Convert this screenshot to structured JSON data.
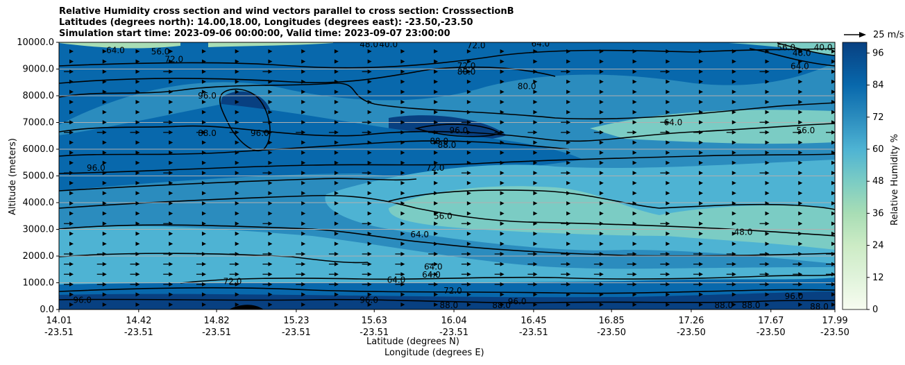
{
  "title_lines": [
    "Relative Humidity cross section and wind vectors parallel to cross section: CrosssectionB",
    "Latitudes (degrees north): 14.00,18.00, Longitudes (degrees east): -23.50,-23.50",
    "Simulation start time: 2023-09-06 00:00:00, Valid time: 2023-09-07 23:00:00"
  ],
  "quiver_key": "25 m/s",
  "chart_data": {
    "type": "contour",
    "xlabel_lat": "Latitude (degrees N)",
    "xlabel_lon": "Longitude (degrees E)",
    "ylabel": "Altitude (meters)",
    "colorbar_label": "Relative Humidity %",
    "ylim": [
      0,
      10000
    ],
    "yticks": [
      "0.0",
      "1000.0",
      "2000.0",
      "3000.0",
      "4000.0",
      "5000.0",
      "6000.0",
      "7000.0",
      "8000.0",
      "9000.0",
      "10000.0"
    ],
    "yticks_values": [
      0,
      1000,
      2000,
      3000,
      4000,
      5000,
      6000,
      7000,
      8000,
      9000,
      10000
    ],
    "xticks": [
      {
        "lat": "14.01",
        "lon": "-23.51",
        "frac": 0.0
      },
      {
        "lat": "14.42",
        "lon": "-23.51",
        "frac": 0.1027
      },
      {
        "lat": "14.82",
        "lon": "-23.51",
        "frac": 0.2031
      },
      {
        "lat": "15.23",
        "lon": "-23.51",
        "frac": 0.3058
      },
      {
        "lat": "15.63",
        "lon": "-23.51",
        "frac": 0.4063
      },
      {
        "lat": "16.04",
        "lon": "-23.51",
        "frac": 0.509
      },
      {
        "lat": "16.45",
        "lon": "-23.51",
        "frac": 0.6117
      },
      {
        "lat": "16.85",
        "lon": "-23.50",
        "frac": 0.7121
      },
      {
        "lat": "17.26",
        "lon": "-23.50",
        "frac": 0.8148
      },
      {
        "lat": "17.67",
        "lon": "-23.50",
        "frac": 0.9175
      },
      {
        "lat": "17.99",
        "lon": "-23.50",
        "frac": 1.0
      }
    ],
    "colorbar_ticks": [
      "0",
      "12",
      "24",
      "36",
      "48",
      "60",
      "72",
      "84",
      "96"
    ],
    "colorbar_tick_values": [
      0,
      12,
      24,
      36,
      48,
      60,
      72,
      84,
      96
    ],
    "colorbar_range": [
      0,
      100
    ],
    "grid_y": true,
    "contour_labels": [
      {
        "text": "64.0",
        "x": 14.3,
        "y": 9700
      },
      {
        "text": "56.0",
        "x": 14.53,
        "y": 9650
      },
      {
        "text": "72.0",
        "x": 14.6,
        "y": 9370
      },
      {
        "text": "96.0",
        "x": 14.77,
        "y": 8000
      },
      {
        "text": "88.0",
        "x": 14.77,
        "y": 6600
      },
      {
        "text": "96.0",
        "x": 15.04,
        "y": 6600
      },
      {
        "text": "96.0",
        "x": 14.2,
        "y": 5300
      },
      {
        "text": "72.0",
        "x": 16.15,
        "y": 9880
      },
      {
        "text": "72.0",
        "x": 16.1,
        "y": 9120
      },
      {
        "text": "80.0",
        "x": 16.1,
        "y": 8900
      },
      {
        "text": "80.0",
        "x": 16.41,
        "y": 8350
      },
      {
        "text": "88.0",
        "x": 15.96,
        "y": 6300
      },
      {
        "text": "88.0",
        "x": 16.0,
        "y": 6150
      },
      {
        "text": "96.0",
        "x": 16.06,
        "y": 6700
      },
      {
        "text": "72.0",
        "x": 15.94,
        "y": 5300
      },
      {
        "text": "56.0",
        "x": 15.98,
        "y": 3500
      },
      {
        "text": "64.0",
        "x": 15.86,
        "y": 2800
      },
      {
        "text": "64.0",
        "x": 15.93,
        "y": 1600
      },
      {
        "text": "64.0",
        "x": 15.92,
        "y": 1300
      },
      {
        "text": "64.0",
        "x": 15.74,
        "y": 1100
      },
      {
        "text": "72.0",
        "x": 16.03,
        "y": 700
      },
      {
        "text": "88.0",
        "x": 16.01,
        "y": 150
      },
      {
        "text": "96.0",
        "x": 15.6,
        "y": 350
      },
      {
        "text": "72.0",
        "x": 14.9,
        "y": 1050
      },
      {
        "text": "96.0",
        "x": 14.13,
        "y": 350
      },
      {
        "text": "64.0",
        "x": 17.16,
        "y": 7000
      },
      {
        "text": "56.0",
        "x": 17.84,
        "y": 6700
      },
      {
        "text": "64.0",
        "x": 17.81,
        "y": 9100
      },
      {
        "text": "56.0",
        "x": 17.74,
        "y": 9800
      },
      {
        "text": "48.0",
        "x": 17.82,
        "y": 9600
      },
      {
        "text": "40.0",
        "x": 17.93,
        "y": 9800
      },
      {
        "text": "48.0",
        "x": 17.52,
        "y": 2900
      },
      {
        "text": "88.0",
        "x": 17.42,
        "y": 150
      },
      {
        "text": "88.0",
        "x": 17.56,
        "y": 150
      },
      {
        "text": "96.0",
        "x": 17.78,
        "y": 500
      },
      {
        "text": "88.0",
        "x": 17.91,
        "y": 100
      },
      {
        "text": "96.0",
        "x": 16.36,
        "y": 300
      },
      {
        "text": "88.0",
        "x": 16.28,
        "y": 150
      },
      {
        "text": "48.0",
        "x": 15.6,
        "y": 9920
      },
      {
        "text": "40.0",
        "x": 15.7,
        "y": 9920
      },
      {
        "text": "64.0",
        "x": 16.48,
        "y": 9950
      }
    ]
  }
}
